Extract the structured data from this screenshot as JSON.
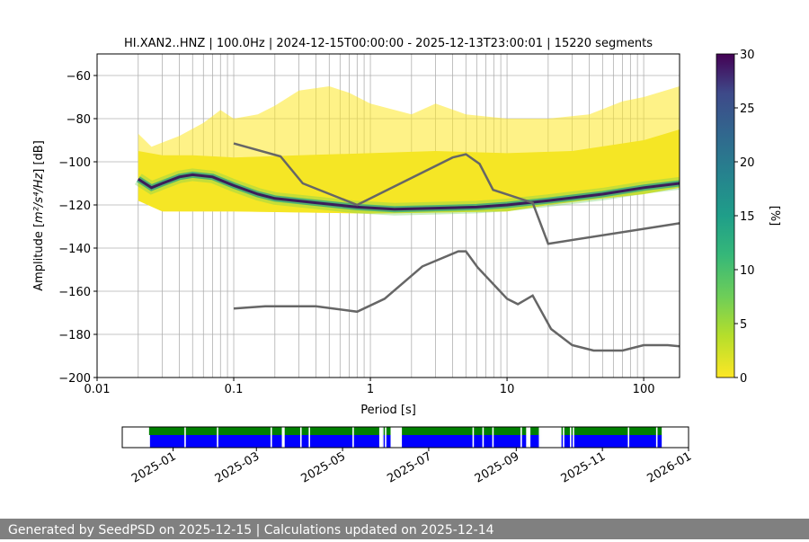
{
  "chart_data": {
    "type": "heatmap",
    "title": "HI.XAN2..HNZ | 100.0Hz | 2024-12-15T00:00:00 - 2025-12-13T23:00:01 | 15220 segments",
    "xlabel": "Period [s]",
    "ylabel_prefix": "Amplitude [",
    "ylabel_units": "m²/s⁴/Hz",
    "ylabel_suffix": "] [dB]",
    "xscale": "log",
    "xlim": [
      0.01,
      183
    ],
    "ylim": [
      -200,
      -50
    ],
    "xticks": [
      0.01,
      0.1,
      1,
      10,
      100
    ],
    "xtick_labels": [
      "0.01",
      "0.1",
      "1",
      "10",
      "100"
    ],
    "yticks": [
      -60,
      -80,
      -100,
      -120,
      -140,
      -160,
      -180,
      -200
    ],
    "ytick_labels": [
      "−60",
      "−80",
      "−100",
      "−120",
      "−140",
      "−160",
      "−180",
      "−200"
    ],
    "grid": true,
    "colorbar": {
      "label": "[%]",
      "range": [
        0,
        30
      ],
      "ticks": [
        0,
        5,
        10,
        15,
        20,
        25,
        30
      ],
      "tick_labels": [
        "0",
        "5",
        "10",
        "15",
        "20",
        "25",
        "30"
      ],
      "colormap": "viridis_r"
    },
    "pdf_sparse_upper": [
      [
        0.02,
        -87
      ],
      [
        0.025,
        -93
      ],
      [
        0.04,
        -88
      ],
      [
        0.06,
        -82
      ],
      [
        0.08,
        -76
      ],
      [
        0.1,
        -80
      ],
      [
        0.15,
        -78
      ],
      [
        0.2,
        -74
      ],
      [
        0.3,
        -67
      ],
      [
        0.5,
        -65
      ],
      [
        0.7,
        -68
      ],
      [
        1,
        -73
      ],
      [
        2,
        -78
      ],
      [
        3,
        -73
      ],
      [
        5,
        -78
      ],
      [
        10,
        -80
      ],
      [
        20,
        -80
      ],
      [
        40,
        -78
      ],
      [
        70,
        -72
      ],
      [
        100,
        -70
      ],
      [
        183,
        -65
      ]
    ],
    "pdf_core_upper": [
      [
        0.02,
        -95
      ],
      [
        0.03,
        -97
      ],
      [
        0.05,
        -97
      ],
      [
        0.1,
        -98
      ],
      [
        0.3,
        -97
      ],
      [
        1,
        -96
      ],
      [
        3,
        -95
      ],
      [
        10,
        -96
      ],
      [
        30,
        -95
      ],
      [
        100,
        -90
      ],
      [
        183,
        -85
      ]
    ],
    "pdf_lower": [
      [
        0.02,
        -118
      ],
      [
        0.03,
        -123
      ],
      [
        0.1,
        -123
      ],
      [
        1,
        -124
      ],
      [
        10,
        -123
      ],
      [
        20,
        -120
      ],
      [
        50,
        -117
      ],
      [
        100,
        -115
      ],
      [
        183,
        -112
      ]
    ],
    "mode": [
      [
        0.02,
        -108
      ],
      [
        0.025,
        -112
      ],
      [
        0.03,
        -110
      ],
      [
        0.04,
        -107
      ],
      [
        0.05,
        -106
      ],
      [
        0.07,
        -107
      ],
      [
        0.1,
        -111
      ],
      [
        0.15,
        -115
      ],
      [
        0.2,
        -117
      ],
      [
        0.4,
        -119
      ],
      [
        0.8,
        -121
      ],
      [
        1.5,
        -122
      ],
      [
        3,
        -121.5
      ],
      [
        6,
        -121
      ],
      [
        10,
        -120
      ],
      [
        20,
        -118
      ],
      [
        50,
        -115
      ],
      [
        100,
        -112
      ],
      [
        183,
        -110
      ]
    ],
    "nhnm": [
      [
        0.1,
        -91.5
      ],
      [
        0.22,
        -97.5
      ],
      [
        0.32,
        -110
      ],
      [
        0.8,
        -120
      ],
      [
        4,
        -98
      ],
      [
        5,
        -96.5
      ],
      [
        6.3,
        -101
      ],
      [
        7.9,
        -113
      ],
      [
        15.4,
        -119
      ],
      [
        20,
        -138
      ],
      [
        183,
        -128.5
      ]
    ],
    "nlnm": [
      [
        0.1,
        -168
      ],
      [
        0.17,
        -167
      ],
      [
        0.4,
        -167
      ],
      [
        0.8,
        -169.5
      ],
      [
        1.27,
        -163.5
      ],
      [
        2.4,
        -148.5
      ],
      [
        4.4,
        -141.5
      ],
      [
        5,
        -141.5
      ],
      [
        6.1,
        -149
      ],
      [
        10,
        -163.5
      ],
      [
        12,
        -166
      ],
      [
        15.4,
        -162
      ],
      [
        21,
        -177.5
      ],
      [
        30,
        -185
      ],
      [
        43,
        -187.5
      ],
      [
        70,
        -187.5
      ],
      [
        100,
        -185
      ],
      [
        150,
        -185
      ],
      [
        183,
        -185.5
      ]
    ],
    "colors": {
      "model": "#666666",
      "data_available": "#0000ff",
      "psd_used": "#008000"
    },
    "timeline": {
      "xlim": [
        "2024-11-26",
        "2026-01-01"
      ],
      "ticks": [
        "2025-01-01",
        "2025-03-01",
        "2025-05-01",
        "2025-07-01",
        "2025-09-01",
        "2025-11-01",
        "2026-01-01"
      ],
      "tick_labels": [
        "2025-01",
        "2025-03",
        "2025-05",
        "2025-07",
        "2025-09",
        "2025-11",
        "2026-01"
      ],
      "data_start": "2024-12-15",
      "data_end": "2025-12-13",
      "gaps": [
        [
          "2025-01-09",
          "2025-01-09"
        ],
        [
          "2025-02-01",
          "2025-02-01"
        ],
        [
          "2025-03-11",
          "2025-03-11"
        ],
        [
          "2025-03-19",
          "2025-03-20"
        ],
        [
          "2025-04-01",
          "2025-04-01"
        ],
        [
          "2025-04-07",
          "2025-04-07"
        ],
        [
          "2025-05-08",
          "2025-05-08"
        ],
        [
          "2025-05-27",
          "2025-05-28"
        ],
        [
          "2025-05-29",
          "2025-05-29"
        ],
        [
          "2025-05-31",
          "2025-05-31"
        ],
        [
          "2025-06-04",
          "2025-06-11"
        ],
        [
          "2025-08-01",
          "2025-08-01"
        ],
        [
          "2025-08-08",
          "2025-08-08"
        ],
        [
          "2025-08-15",
          "2025-08-15"
        ],
        [
          "2025-09-04",
          "2025-09-04"
        ],
        [
          "2025-09-08",
          "2025-09-10"
        ],
        [
          "2025-09-17",
          "2025-09-17"
        ],
        [
          "2025-09-18",
          "2025-10-02"
        ],
        [
          "2025-10-04",
          "2025-10-04"
        ],
        [
          "2025-10-09",
          "2025-10-09"
        ],
        [
          "2025-10-11",
          "2025-10-11"
        ],
        [
          "2025-11-19",
          "2025-11-19"
        ],
        [
          "2025-12-09",
          "2025-12-09"
        ]
      ]
    }
  },
  "footer": "Generated by SeedPSD on 2025-12-15 | Calculations updated on 2025-12-14"
}
